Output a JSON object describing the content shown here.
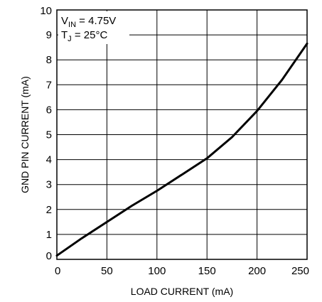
{
  "chart_data": {
    "type": "line",
    "title": "",
    "xlabel": "LOAD CURRENT (mA)",
    "ylabel": "GND PIN CURRENT (mA)",
    "xlim": [
      0,
      250
    ],
    "ylim": [
      0,
      10
    ],
    "xticks": [
      "0",
      "50",
      "100",
      "150",
      "200",
      "250"
    ],
    "yticks": [
      "0",
      "1",
      "2",
      "3",
      "4",
      "5",
      "6",
      "7",
      "8",
      "9",
      "10"
    ],
    "grid": true,
    "annotations": {
      "line1_main": "V",
      "line1_sub": "IN",
      "line1_rest": " = 4.75V",
      "line2_main": "T",
      "line2_sub": "J",
      "line2_rest": " = 25°C"
    },
    "series": [
      {
        "x": [
          0,
          25,
          50,
          75,
          100,
          125,
          150,
          175,
          200,
          225,
          250
        ],
        "y": [
          0.15,
          0.85,
          1.5,
          2.15,
          2.75,
          3.4,
          4.05,
          4.9,
          5.95,
          7.2,
          8.65
        ]
      }
    ]
  }
}
